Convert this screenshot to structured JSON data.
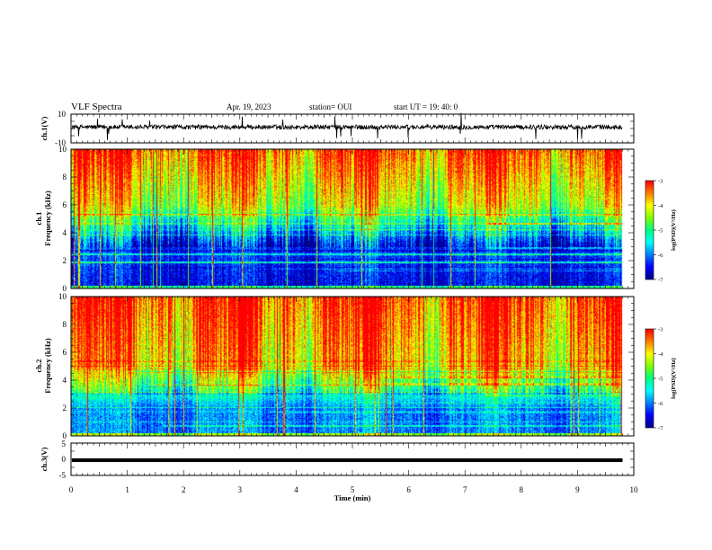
{
  "header": {
    "title": "VLF Spectra",
    "date": "Apr. 19, 2023",
    "station": "station= OUI",
    "start": "start  UT  =   19: 40: 0"
  },
  "chart_data": [
    {
      "type": "line",
      "panel": "ch.1 waveform",
      "ylabel": "ch.1(V)",
      "ylim": [
        -10,
        10
      ],
      "yticks": [
        "10",
        "-10"
      ],
      "baseline_v": 1.0
    },
    {
      "type": "heatmap",
      "panel": "ch.1 spectrogram",
      "ylabel_line1": "ch.1",
      "ylabel_line2": "Frequency  (kHz)",
      "ylim": [
        0,
        10
      ],
      "yticks": [
        "0",
        "2",
        "4",
        "6",
        "8",
        "10"
      ],
      "colorbar": {
        "label": "log(PSD)(V²/Hz)",
        "ticks": [
          "-3",
          "-4",
          "-5",
          "-6",
          "-7"
        ],
        "range": [
          -7,
          -3
        ]
      }
    },
    {
      "type": "heatmap",
      "panel": "ch.2 spectrogram",
      "ylabel_line1": "ch.2",
      "ylabel_line2": "Frequency  (kHz)",
      "ylim": [
        0,
        10
      ],
      "yticks": [
        "0",
        "2",
        "4",
        "6",
        "8",
        "10"
      ],
      "colorbar": {
        "label": "log(PSD)(V²/Hz)",
        "ticks": [
          "-3",
          "-4",
          "-5",
          "-6",
          "-7"
        ],
        "range": [
          -7,
          -3
        ]
      }
    },
    {
      "type": "line",
      "panel": "ch.3 waveform",
      "ylabel": "ch.3(V)",
      "ylim": [
        -5,
        5
      ],
      "yticks": [
        "5",
        "0",
        "-5"
      ],
      "baseline_v": -0.3
    }
  ],
  "xaxis": {
    "label": "Time  (min)",
    "xlim": [
      0,
      10
    ],
    "data_end": 9.8,
    "ticks": [
      "0",
      "1",
      "2",
      "3",
      "4",
      "5",
      "6",
      "7",
      "8",
      "9",
      "10"
    ]
  },
  "colors": {
    "scale": [
      "#00008b",
      "#0000ff",
      "#0080ff",
      "#00ffff",
      "#00ff80",
      "#80ff00",
      "#ffff00",
      "#ff8000",
      "#ff0000"
    ]
  }
}
